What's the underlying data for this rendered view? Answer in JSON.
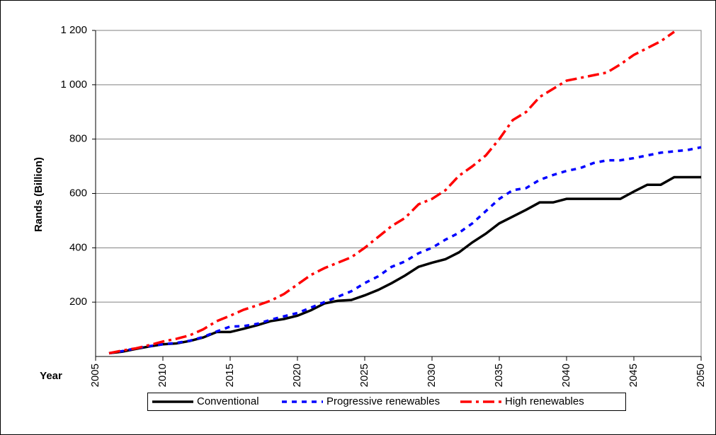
{
  "chart_data": {
    "type": "line",
    "x_label": "Year",
    "y_label": "Rands (Billion)",
    "x": [
      2006,
      2007,
      2008,
      2009,
      2010,
      2011,
      2012,
      2013,
      2014,
      2015,
      2016,
      2017,
      2018,
      2019,
      2020,
      2021,
      2022,
      2023,
      2024,
      2025,
      2026,
      2027,
      2028,
      2029,
      2030,
      2031,
      2032,
      2033,
      2034,
      2035,
      2036,
      2037,
      2038,
      2039,
      2040,
      2041,
      2042,
      2043,
      2044,
      2045,
      2046,
      2047,
      2048,
      2049,
      2050
    ],
    "series": [
      {
        "name": "Conventional",
        "color": "#000000",
        "dash": "solid",
        "values": [
          12,
          18,
          28,
          37,
          45,
          48,
          57,
          70,
          90,
          90,
          102,
          115,
          130,
          138,
          150,
          170,
          195,
          205,
          208,
          225,
          245,
          270,
          298,
          330,
          345,
          358,
          383,
          420,
          452,
          490,
          515,
          540,
          567,
          567,
          580,
          580,
          580,
          580,
          580,
          607,
          632,
          632,
          660,
          660,
          660
        ]
      },
      {
        "name": "Progressive renewables",
        "color": "#0000ff",
        "dash": "dash",
        "values": [
          12,
          20,
          30,
          38,
          45,
          50,
          58,
          72,
          92,
          110,
          112,
          120,
          135,
          148,
          160,
          180,
          200,
          220,
          240,
          270,
          295,
          330,
          350,
          380,
          400,
          430,
          455,
          490,
          535,
          580,
          612,
          620,
          650,
          668,
          683,
          693,
          712,
          722,
          722,
          730,
          740,
          750,
          755,
          760,
          770
        ]
      },
      {
        "name": "High renewables",
        "color": "#ff0000",
        "dash": "dashdot",
        "values": [
          12,
          22,
          30,
          42,
          55,
          65,
          78,
          100,
          130,
          150,
          172,
          188,
          205,
          230,
          265,
          300,
          325,
          345,
          365,
          400,
          440,
          480,
          510,
          560,
          580,
          612,
          665,
          700,
          740,
          800,
          870,
          900,
          955,
          985,
          1015,
          1025,
          1035,
          1045,
          1075,
          1110,
          1135,
          1160,
          1195,
          null,
          null
        ]
      }
    ],
    "xlim": [
      2005,
      2050
    ],
    "xticks": [
      2005,
      2010,
      2015,
      2020,
      2025,
      2030,
      2035,
      2040,
      2045,
      2050
    ],
    "ylim": [
      0,
      1200
    ],
    "yticks": [
      200,
      400,
      600,
      800,
      {
        "value": 1000,
        "label": "1 000"
      },
      {
        "value": 1200,
        "label": "1 200"
      }
    ],
    "grid": true,
    "legend": "bottom"
  }
}
